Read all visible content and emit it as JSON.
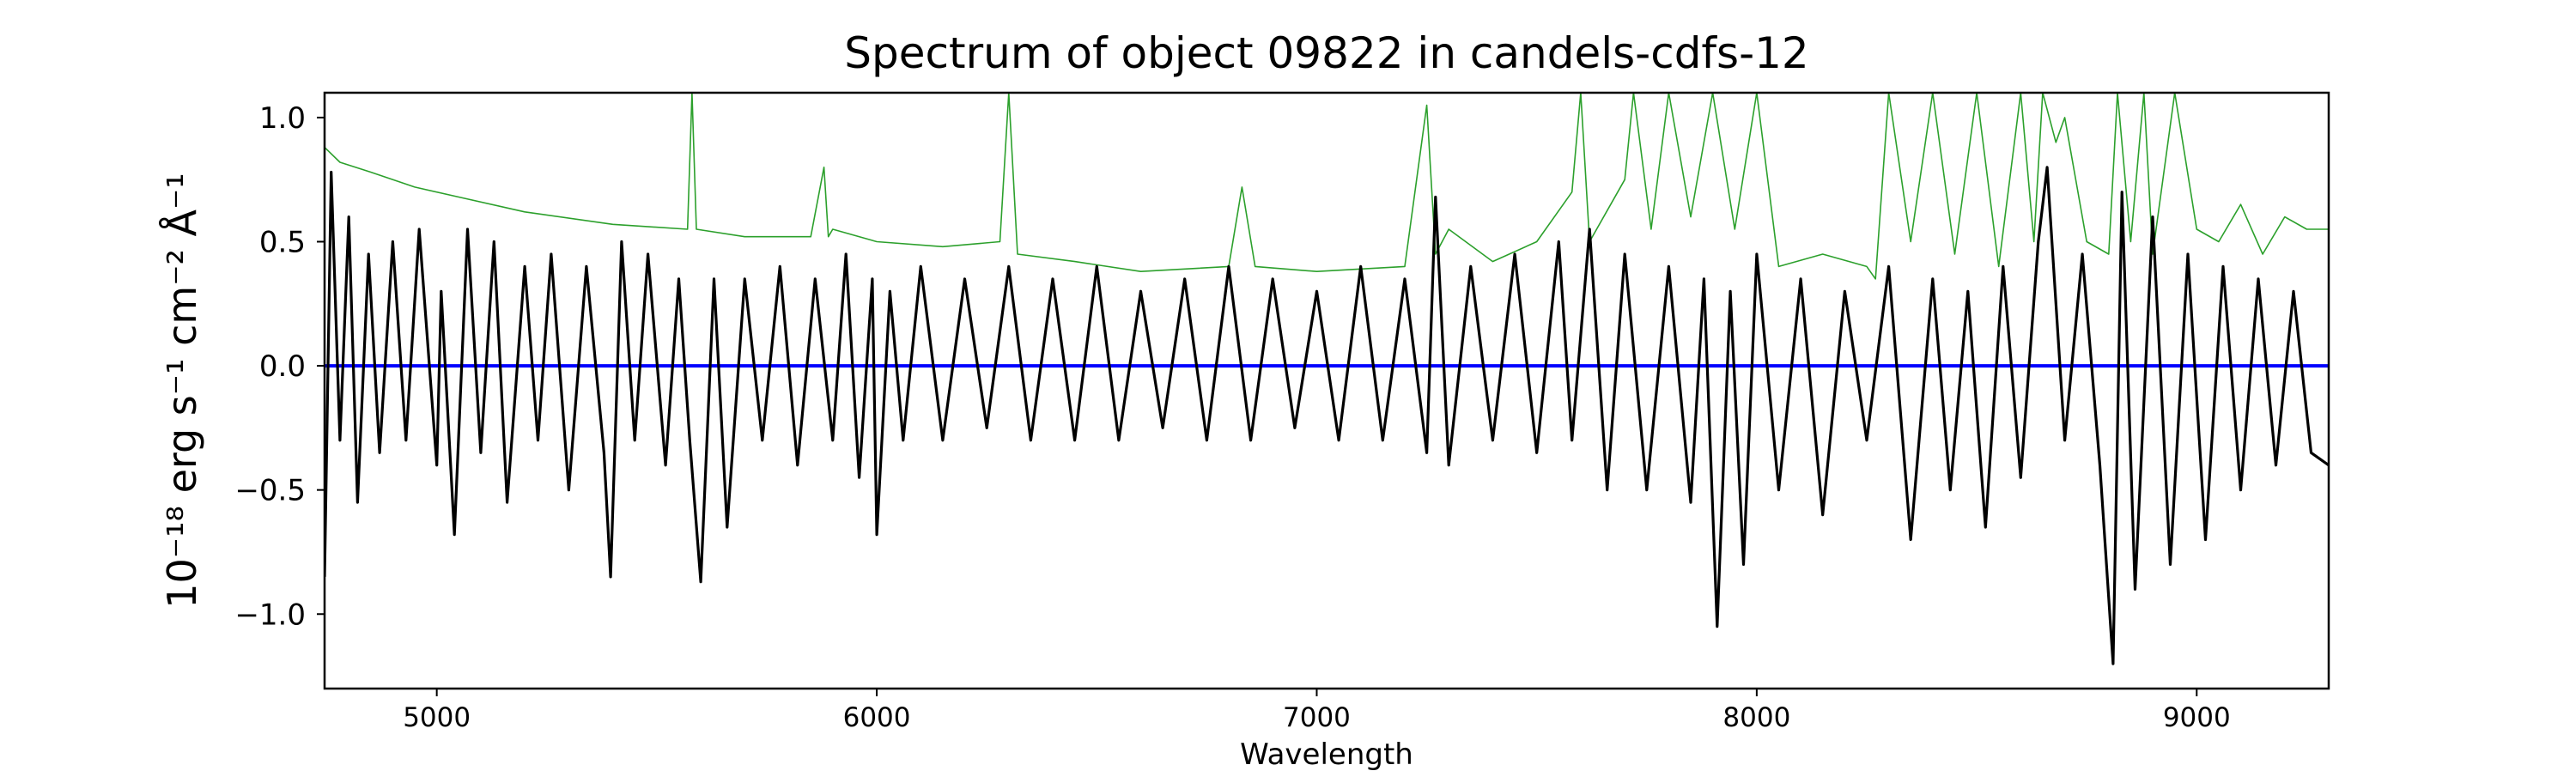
{
  "chart_data": {
    "type": "line",
    "title": "Spectrum of object 09822 in candels-cdfs-12",
    "xlabel": "Wavelength",
    "ylabel": "10⁻¹⁸ erg s⁻¹ cm⁻² Å⁻¹",
    "xlim": [
      4745,
      9300
    ],
    "ylim": [
      -1.3,
      1.1
    ],
    "x_ticks": [
      5000,
      6000,
      7000,
      8000,
      9000
    ],
    "y_ticks": [
      -1.0,
      -0.5,
      0.0,
      0.5,
      1.0
    ],
    "x_tick_labels": [
      "5000",
      "6000",
      "7000",
      "8000",
      "9000"
    ],
    "y_tick_labels": [
      "−1.0",
      "−0.5",
      "0.0",
      "0.5",
      "1.0"
    ],
    "grid": false,
    "legend": "none",
    "series": [
      {
        "role": "flux",
        "color": "#000000",
        "x": [
          4745,
          4760,
          4780,
          4800,
          4820,
          4845,
          4870,
          4900,
          4930,
          4960,
          5000,
          5010,
          5040,
          5070,
          5100,
          5130,
          5160,
          5200,
          5230,
          5260,
          5300,
          5340,
          5380,
          5395,
          5420,
          5450,
          5480,
          5520,
          5550,
          5575,
          5600,
          5630,
          5660,
          5700,
          5740,
          5780,
          5820,
          5860,
          5900,
          5930,
          5960,
          5990,
          6000,
          6030,
          6060,
          6100,
          6150,
          6200,
          6250,
          6300,
          6350,
          6400,
          6450,
          6500,
          6550,
          6600,
          6650,
          6700,
          6750,
          6800,
          6850,
          6900,
          6950,
          7000,
          7050,
          7100,
          7150,
          7200,
          7250,
          7270,
          7300,
          7350,
          7400,
          7450,
          7500,
          7550,
          7580,
          7620,
          7660,
          7700,
          7750,
          7800,
          7850,
          7880,
          7910,
          7940,
          7970,
          8000,
          8050,
          8100,
          8150,
          8200,
          8250,
          8300,
          8350,
          8400,
          8440,
          8480,
          8520,
          8560,
          8600,
          8640,
          8660,
          8700,
          8740,
          8780,
          8810,
          8830,
          8860,
          8900,
          8940,
          8980,
          9020,
          9060,
          9100,
          9140,
          9180,
          9220,
          9260,
          9300
        ],
        "y": [
          -0.85,
          0.78,
          -0.3,
          0.6,
          -0.55,
          0.45,
          -0.35,
          0.5,
          -0.3,
          0.55,
          -0.4,
          0.3,
          -0.68,
          0.55,
          -0.35,
          0.5,
          -0.55,
          0.4,
          -0.3,
          0.45,
          -0.5,
          0.4,
          -0.35,
          -0.85,
          0.5,
          -0.3,
          0.45,
          -0.4,
          0.35,
          -0.3,
          -0.87,
          0.35,
          -0.65,
          0.35,
          -0.3,
          0.4,
          -0.4,
          0.35,
          -0.3,
          0.45,
          -0.45,
          0.35,
          -0.68,
          0.3,
          -0.3,
          0.4,
          -0.3,
          0.35,
          -0.25,
          0.4,
          -0.3,
          0.35,
          -0.3,
          0.4,
          -0.3,
          0.3,
          -0.25,
          0.35,
          -0.3,
          0.4,
          -0.3,
          0.35,
          -0.25,
          0.3,
          -0.3,
          0.4,
          -0.3,
          0.35,
          -0.35,
          0.68,
          -0.4,
          0.4,
          -0.3,
          0.45,
          -0.35,
          0.5,
          -0.3,
          0.55,
          -0.5,
          0.45,
          -0.5,
          0.4,
          -0.55,
          0.35,
          -1.05,
          0.3,
          -0.8,
          0.45,
          -0.5,
          0.35,
          -0.6,
          0.3,
          -0.3,
          0.4,
          -0.7,
          0.35,
          -0.5,
          0.3,
          -0.65,
          0.4,
          -0.45,
          0.5,
          0.8,
          -0.3,
          0.45,
          -0.4,
          -1.2,
          0.7,
          -0.9,
          0.6,
          -0.8,
          0.45,
          -0.7,
          0.4,
          -0.5,
          0.35,
          -0.4,
          0.3,
          -0.35,
          -0.4
        ]
      },
      {
        "role": "continuum",
        "color": "#0000ff",
        "x": [
          4745,
          9300
        ],
        "y": [
          0.0,
          0.0
        ]
      },
      {
        "role": "error",
        "color": "#2ca02c",
        "x": [
          4745,
          4780,
          4850,
          4950,
          5050,
          5200,
          5400,
          5570,
          5580,
          5590,
          5700,
          5850,
          5880,
          5890,
          5900,
          6000,
          6150,
          6280,
          6300,
          6320,
          6450,
          6600,
          6800,
          6830,
          6860,
          7000,
          7200,
          7250,
          7270,
          7300,
          7400,
          7500,
          7580,
          7600,
          7620,
          7700,
          7720,
          7760,
          7800,
          7850,
          7900,
          7950,
          8000,
          8050,
          8150,
          8250,
          8270,
          8300,
          8350,
          8400,
          8450,
          8500,
          8550,
          8600,
          8630,
          8650,
          8680,
          8700,
          8750,
          8800,
          8820,
          8850,
          8880,
          8900,
          8950,
          9000,
          9050,
          9100,
          9150,
          9200,
          9250,
          9300
        ],
        "y": [
          0.88,
          0.82,
          0.78,
          0.72,
          0.68,
          0.62,
          0.57,
          0.55,
          1.1,
          0.55,
          0.52,
          0.52,
          0.8,
          0.52,
          0.55,
          0.5,
          0.48,
          0.5,
          1.1,
          0.45,
          0.42,
          0.38,
          0.4,
          0.72,
          0.4,
          0.38,
          0.4,
          1.05,
          0.45,
          0.55,
          0.42,
          0.5,
          0.7,
          1.1,
          0.5,
          0.75,
          1.1,
          0.55,
          1.1,
          0.6,
          1.1,
          0.55,
          1.1,
          0.4,
          0.45,
          0.4,
          0.35,
          1.1,
          0.5,
          1.1,
          0.45,
          1.1,
          0.4,
          1.1,
          0.5,
          1.1,
          0.9,
          1.0,
          0.5,
          0.45,
          1.1,
          0.5,
          1.1,
          0.45,
          1.1,
          0.55,
          0.5,
          0.65,
          0.45,
          0.6,
          0.55,
          0.55
        ]
      }
    ]
  }
}
